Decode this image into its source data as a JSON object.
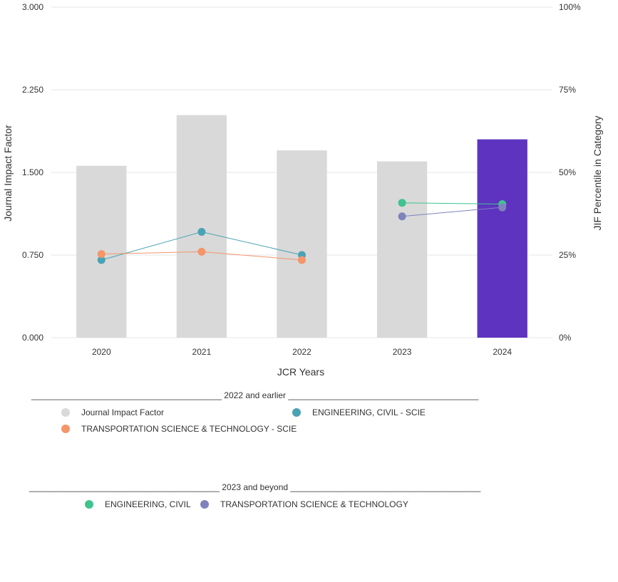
{
  "chart_data": {
    "type": "bar",
    "categories": [
      "2020",
      "2021",
      "2022",
      "2023",
      "2024"
    ],
    "bar_values": [
      1.56,
      2.02,
      1.7,
      1.6,
      1.8
    ],
    "bar_colors": [
      "#d9d9d9",
      "#d9d9d9",
      "#d9d9d9",
      "#d9d9d9",
      "#5e33bf"
    ],
    "xlabel": "JCR Years",
    "ylabel": "Journal Impact Factor",
    "y2label": "JIF Percentile in Category",
    "ylim": [
      0,
      3
    ],
    "y2lim": [
      0,
      100
    ],
    "y_ticks": [
      "0.000",
      "0.750",
      "1.500",
      "2.250",
      "3.000"
    ],
    "y2_ticks": [
      "0%",
      "25%",
      "50%",
      "75%",
      "100%"
    ],
    "grid": true,
    "series": [
      {
        "name": "ENGINEERING, CIVIL - SCIE",
        "color": "#4aa3b5",
        "x": [
          "2020",
          "2021",
          "2022"
        ],
        "values": [
          23.5,
          32.0,
          25.0
        ]
      },
      {
        "name": "TRANSPORTATION SCIENCE & TECHNOLOGY - SCIE",
        "color": "#f4956a",
        "x": [
          "2020",
          "2021",
          "2022"
        ],
        "values": [
          25.3,
          26.0,
          23.5
        ]
      },
      {
        "name": "ENGINEERING, CIVIL",
        "color": "#3fc38f",
        "x": [
          "2023",
          "2024"
        ],
        "values": [
          40.8,
          40.4
        ]
      },
      {
        "name": "TRANSPORTATION SCIENCE & TECHNOLOGY",
        "color": "#7f83bd",
        "x": [
          "2023",
          "2024"
        ],
        "values": [
          36.7,
          39.4
        ]
      }
    ]
  },
  "legend": {
    "group1_label": "2022 and earlier",
    "group2_label": "2023 and beyond",
    "items_group1": [
      {
        "label": "Journal Impact Factor",
        "color": "#d9d9d9"
      },
      {
        "label": "ENGINEERING, CIVIL - SCIE",
        "color": "#4aa3b5"
      },
      {
        "label": "TRANSPORTATION SCIENCE & TECHNOLOGY - SCIE",
        "color": "#f4956a"
      }
    ],
    "items_group2": [
      {
        "label": "ENGINEERING, CIVIL",
        "color": "#3fc38f"
      },
      {
        "label": "TRANSPORTATION SCIENCE & TECHNOLOGY",
        "color": "#7f83bd"
      }
    ]
  }
}
